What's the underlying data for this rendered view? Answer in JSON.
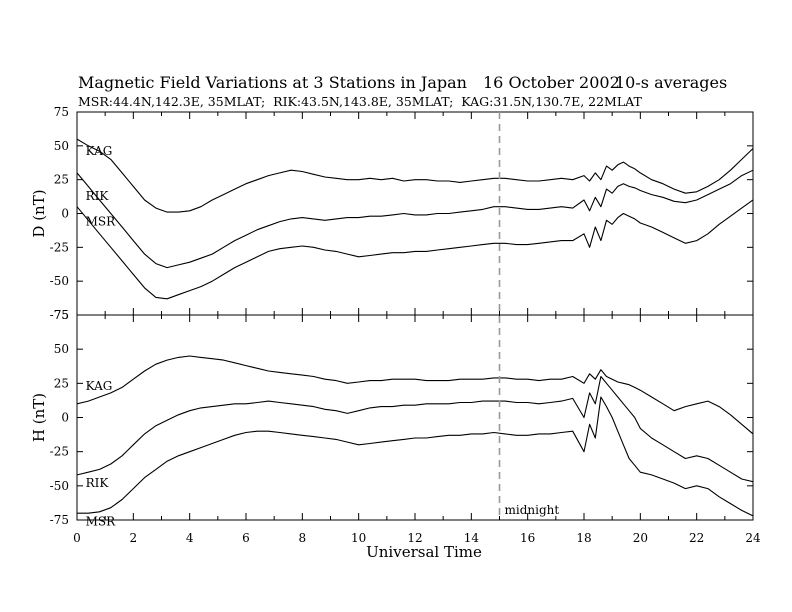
{
  "chart_data": {
    "type": "line",
    "title": "Magnetic Field Variations at 3 Stations in Japan",
    "date": "16 October 2002",
    "averaging": "10-s averages",
    "subtitle": "MSR:44.4N,142.3E, 35MLAT;  RIK:43.5N,143.8E, 35MLAT;  KAG:31.5N,130.7E, 22MLAT",
    "xlabel": "Universal Time",
    "xlim": [
      0,
      24
    ],
    "xticks": [
      "0",
      "2",
      "4",
      "6",
      "8",
      "10",
      "12",
      "14",
      "16",
      "18",
      "20",
      "22",
      "24"
    ],
    "annotation": {
      "text": "midnight",
      "x": 15
    },
    "panels": [
      {
        "ylabel": "D (nT)",
        "ylim": [
          -75,
          75
        ],
        "yticks": [
          "75",
          "50",
          "25",
          "0",
          "-25",
          "-50",
          "-75"
        ],
        "series": [
          {
            "name": "KAG",
            "label_at": [
              0.2,
              46
            ],
            "x": [
              0,
              0.4,
              0.8,
              1.2,
              1.6,
              2,
              2.4,
              2.8,
              3.2,
              3.6,
              4,
              4.4,
              4.8,
              5.2,
              5.6,
              6,
              6.4,
              6.8,
              7.2,
              7.6,
              8,
              8.4,
              8.8,
              9.2,
              9.6,
              10,
              10.4,
              10.8,
              11.2,
              11.6,
              12,
              12.4,
              12.8,
              13.2,
              13.6,
              14,
              14.4,
              14.8,
              15.2,
              15.6,
              16,
              16.4,
              16.8,
              17.2,
              17.6,
              18,
              18.2,
              18.4,
              18.6,
              18.8,
              19,
              19.2,
              19.4,
              19.6,
              19.8,
              20,
              20.4,
              20.8,
              21.2,
              21.6,
              22,
              22.4,
              22.8,
              23.2,
              23.6,
              24
            ],
            "y": [
              55,
              50,
              46,
              40,
              30,
              20,
              10,
              4,
              1,
              1,
              2,
              5,
              10,
              14,
              18,
              22,
              25,
              28,
              30,
              32,
              31,
              29,
              27,
              26,
              25,
              25,
              26,
              25,
              26,
              24,
              25,
              25,
              24,
              24,
              23,
              24,
              25,
              26,
              26,
              25,
              24,
              24,
              25,
              26,
              25,
              28,
              24,
              30,
              25,
              35,
              32,
              36,
              38,
              35,
              33,
              30,
              25,
              22,
              18,
              15,
              16,
              20,
              25,
              32,
              40,
              48
            ]
          },
          {
            "name": "RIK",
            "label_at": [
              0.2,
              13
            ],
            "x": [
              0,
              0.4,
              0.8,
              1.2,
              1.6,
              2,
              2.4,
              2.8,
              3.2,
              3.6,
              4,
              4.4,
              4.8,
              5.2,
              5.6,
              6,
              6.4,
              6.8,
              7.2,
              7.6,
              8,
              8.4,
              8.8,
              9.2,
              9.6,
              10,
              10.4,
              10.8,
              11.2,
              11.6,
              12,
              12.4,
              12.8,
              13.2,
              13.6,
              14,
              14.4,
              14.8,
              15.2,
              15.6,
              16,
              16.4,
              16.8,
              17.2,
              17.6,
              18,
              18.2,
              18.4,
              18.6,
              18.8,
              19,
              19.2,
              19.4,
              19.6,
              19.8,
              20,
              20.4,
              20.8,
              21.2,
              21.6,
              22,
              22.4,
              22.8,
              23.2,
              23.6,
              24
            ],
            "y": [
              30,
              20,
              10,
              0,
              -10,
              -20,
              -30,
              -37,
              -40,
              -38,
              -36,
              -33,
              -30,
              -25,
              -20,
              -16,
              -12,
              -9,
              -6,
              -4,
              -3,
              -4,
              -5,
              -4,
              -3,
              -3,
              -2,
              -2,
              -1,
              0,
              -1,
              -1,
              0,
              0,
              1,
              2,
              3,
              5,
              5,
              4,
              3,
              3,
              4,
              5,
              4,
              10,
              2,
              12,
              5,
              18,
              15,
              20,
              22,
              20,
              19,
              17,
              14,
              12,
              9,
              8,
              10,
              14,
              18,
              22,
              28,
              32
            ]
          },
          {
            "name": "MSR",
            "label_at": [
              0.2,
              -6
            ],
            "x": [
              0,
              0.4,
              0.8,
              1.2,
              1.6,
              2,
              2.4,
              2.8,
              3.2,
              3.6,
              4,
              4.4,
              4.8,
              5.2,
              5.6,
              6,
              6.4,
              6.8,
              7.2,
              7.6,
              8,
              8.4,
              8.8,
              9.2,
              9.6,
              10,
              10.4,
              10.8,
              11.2,
              11.6,
              12,
              12.4,
              12.8,
              13.2,
              13.6,
              14,
              14.4,
              14.8,
              15.2,
              15.6,
              16,
              16.4,
              16.8,
              17.2,
              17.6,
              18,
              18.2,
              18.4,
              18.6,
              18.8,
              19,
              19.2,
              19.4,
              19.6,
              19.8,
              20,
              20.4,
              20.8,
              21.2,
              21.6,
              22,
              22.4,
              22.8,
              23.2,
              23.6,
              24
            ],
            "y": [
              5,
              -5,
              -15,
              -25,
              -35,
              -45,
              -55,
              -62,
              -63,
              -60,
              -57,
              -54,
              -50,
              -45,
              -40,
              -36,
              -32,
              -28,
              -26,
              -25,
              -24,
              -25,
              -27,
              -28,
              -30,
              -32,
              -31,
              -30,
              -29,
              -29,
              -28,
              -28,
              -27,
              -26,
              -25,
              -24,
              -23,
              -22,
              -22,
              -23,
              -23,
              -22,
              -21,
              -20,
              -20,
              -15,
              -25,
              -10,
              -20,
              -5,
              -8,
              -3,
              0,
              -2,
              -4,
              -7,
              -10,
              -14,
              -18,
              -22,
              -20,
              -15,
              -8,
              -2,
              4,
              10
            ]
          }
        ]
      },
      {
        "ylabel": "H (nT)",
        "ylim": [
          -75,
          75
        ],
        "yticks": [
          "75",
          "50",
          "25",
          "0",
          "-25",
          "-50",
          "-75"
        ],
        "series": [
          {
            "name": "KAG",
            "label_at": [
              0.2,
              23
            ],
            "x": [
              0,
              0.4,
              0.8,
              1.2,
              1.6,
              2,
              2.4,
              2.8,
              3.2,
              3.6,
              4,
              4.4,
              4.8,
              5.2,
              5.6,
              6,
              6.4,
              6.8,
              7.2,
              7.6,
              8,
              8.4,
              8.8,
              9.2,
              9.6,
              10,
              10.4,
              10.8,
              11.2,
              11.6,
              12,
              12.4,
              12.8,
              13.2,
              13.6,
              14,
              14.4,
              14.8,
              15.2,
              15.6,
              16,
              16.4,
              16.8,
              17.2,
              17.6,
              18,
              18.2,
              18.4,
              18.6,
              18.8,
              19,
              19.2,
              19.4,
              19.6,
              19.8,
              20,
              20.4,
              20.8,
              21.2,
              21.6,
              22,
              22.4,
              22.8,
              23.2,
              23.6,
              24
            ],
            "y": [
              10,
              12,
              15,
              18,
              22,
              28,
              34,
              39,
              42,
              44,
              45,
              44,
              43,
              42,
              40,
              38,
              36,
              34,
              33,
              32,
              31,
              30,
              28,
              27,
              25,
              26,
              27,
              27,
              28,
              28,
              28,
              27,
              27,
              27,
              28,
              28,
              28,
              29,
              29,
              28,
              28,
              27,
              28,
              28,
              30,
              25,
              32,
              28,
              35,
              30,
              28,
              26,
              25,
              24,
              22,
              20,
              15,
              10,
              5,
              8,
              10,
              12,
              8,
              2,
              -5,
              -12
            ]
          },
          {
            "name": "RIK",
            "label_at": [
              0.2,
              -48
            ],
            "x": [
              0,
              0.4,
              0.8,
              1.2,
              1.6,
              2,
              2.4,
              2.8,
              3.2,
              3.6,
              4,
              4.4,
              4.8,
              5.2,
              5.6,
              6,
              6.4,
              6.8,
              7.2,
              7.6,
              8,
              8.4,
              8.8,
              9.2,
              9.6,
              10,
              10.4,
              10.8,
              11.2,
              11.6,
              12,
              12.4,
              12.8,
              13.2,
              13.6,
              14,
              14.4,
              14.8,
              15.2,
              15.6,
              16,
              16.4,
              16.8,
              17.2,
              17.6,
              18,
              18.2,
              18.4,
              18.6,
              18.8,
              19,
              19.2,
              19.4,
              19.6,
              19.8,
              20,
              20.4,
              20.8,
              21.2,
              21.6,
              22,
              22.4,
              22.8,
              23.2,
              23.6,
              24
            ],
            "y": [
              -42,
              -40,
              -38,
              -34,
              -28,
              -20,
              -12,
              -6,
              -2,
              2,
              5,
              7,
              8,
              9,
              10,
              10,
              11,
              12,
              11,
              10,
              9,
              8,
              6,
              5,
              3,
              5,
              7,
              8,
              8,
              9,
              9,
              10,
              10,
              10,
              11,
              11,
              12,
              12,
              12,
              11,
              11,
              10,
              11,
              12,
              14,
              0,
              18,
              10,
              30,
              25,
              20,
              15,
              10,
              5,
              0,
              -8,
              -15,
              -20,
              -25,
              -30,
              -28,
              -30,
              -35,
              -40,
              -45,
              -47
            ]
          },
          {
            "name": "MSR",
            "label_at": [
              0.2,
              -76
            ],
            "x": [
              0,
              0.4,
              0.8,
              1.2,
              1.6,
              2,
              2.4,
              2.8,
              3.2,
              3.6,
              4,
              4.4,
              4.8,
              5.2,
              5.6,
              6,
              6.4,
              6.8,
              7.2,
              7.6,
              8,
              8.4,
              8.8,
              9.2,
              9.6,
              10,
              10.4,
              10.8,
              11.2,
              11.6,
              12,
              12.4,
              12.8,
              13.2,
              13.6,
              14,
              14.4,
              14.8,
              15.2,
              15.6,
              16,
              16.4,
              16.8,
              17.2,
              17.6,
              18,
              18.2,
              18.4,
              18.6,
              18.8,
              19,
              19.2,
              19.4,
              19.6,
              19.8,
              20,
              20.4,
              20.8,
              21.2,
              21.6,
              22,
              22.4,
              22.8,
              23.2,
              23.6,
              24
            ],
            "y": [
              -70,
              -70,
              -69,
              -66,
              -60,
              -52,
              -44,
              -38,
              -32,
              -28,
              -25,
              -22,
              -19,
              -16,
              -13,
              -11,
              -10,
              -10,
              -11,
              -12,
              -13,
              -14,
              -15,
              -16,
              -18,
              -20,
              -19,
              -18,
              -17,
              -16,
              -15,
              -15,
              -14,
              -13,
              -13,
              -12,
              -12,
              -11,
              -12,
              -13,
              -13,
              -12,
              -12,
              -11,
              -10,
              -25,
              -5,
              -15,
              15,
              8,
              0,
              -10,
              -20,
              -30,
              -35,
              -40,
              -42,
              -45,
              -48,
              -52,
              -50,
              -52,
              -58,
              -63,
              -68,
              -72
            ]
          }
        ]
      }
    ]
  }
}
